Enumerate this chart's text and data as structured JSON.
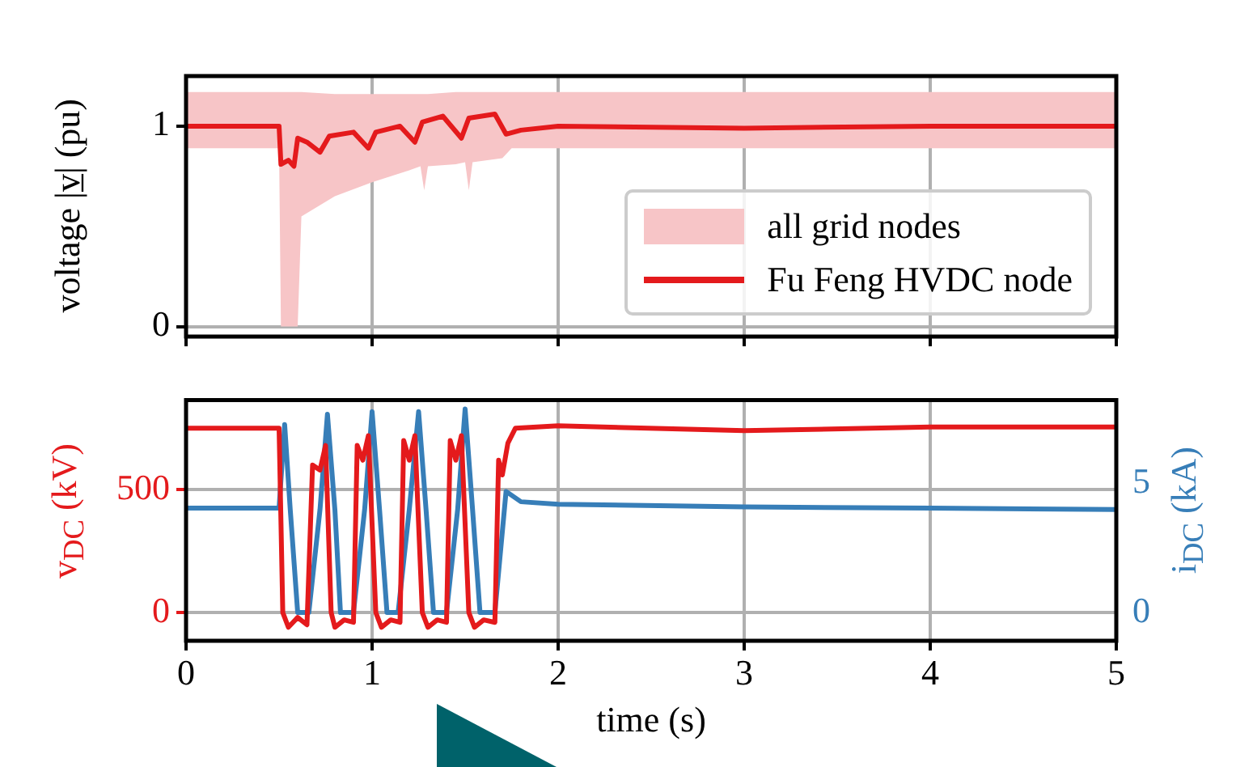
{
  "chart_data": [
    {
      "type": "line",
      "ylabel": "voltage |v̲| (pu)",
      "xlim": [
        0,
        5
      ],
      "xticks": [
        0,
        1,
        2,
        3,
        4,
        5
      ],
      "ylim": [
        -0.05,
        1.25
      ],
      "yticks": [
        0,
        1
      ],
      "grid": true,
      "legend": "bottom right",
      "tick_labels": "y",
      "series": [
        {
          "name": "all grid nodes",
          "type": "area",
          "color": "#f7c5c7",
          "x": [
            0,
            0.5,
            0.51,
            0.6,
            0.62,
            0.8,
            1.0,
            1.2,
            1.26,
            1.28,
            1.3,
            1.45,
            1.5,
            1.52,
            1.54,
            1.7,
            1.75,
            2,
            3,
            4,
            5
          ],
          "values": [
            null,
            null,
            null,
            null,
            null,
            null,
            null,
            null,
            null,
            null,
            null,
            null,
            null,
            null,
            null,
            null,
            null,
            null,
            null,
            null,
            null
          ],
          "lower": [
            0.89,
            0.89,
            0,
            0,
            0.55,
            0.65,
            0.72,
            0.78,
            0.8,
            0.68,
            0.8,
            0.81,
            0.82,
            0.68,
            0.82,
            0.84,
            0.89,
            0.89,
            0.89,
            0.89,
            0.89
          ],
          "upper": [
            1.17,
            1.17,
            1.17,
            1.17,
            1.17,
            1.16,
            1.16,
            1.16,
            1.16,
            1.16,
            1.16,
            1.17,
            1.17,
            1.17,
            1.17,
            1.17,
            1.17,
            1.17,
            1.17,
            1.17,
            1.17
          ]
        },
        {
          "name": "Fu Feng HVDC node",
          "type": "line",
          "color": "#e41a1c",
          "x": [
            0,
            0.5,
            0.51,
            0.55,
            0.58,
            0.6,
            0.65,
            0.72,
            0.77,
            0.9,
            0.98,
            1.02,
            1.15,
            1.23,
            1.27,
            1.38,
            1.48,
            1.52,
            1.66,
            1.72,
            1.8,
            2,
            3,
            4,
            5
          ],
          "values": [
            1.0,
            1.0,
            0.81,
            0.83,
            0.8,
            0.94,
            0.92,
            0.87,
            0.95,
            0.97,
            0.89,
            0.97,
            1.0,
            0.92,
            1.02,
            1.05,
            0.94,
            1.04,
            1.06,
            0.96,
            0.98,
            1.0,
            0.99,
            1.0,
            1.0
          ]
        }
      ]
    },
    {
      "type": "line",
      "xlabel": "time (s)",
      "ylabel": "v$_{DC}$ (kV)",
      "y2label": "i$_{DC}$ (kA)",
      "xlim": [
        0,
        5
      ],
      "xticks": [
        0,
        1,
        2,
        3,
        4,
        5
      ],
      "ylim": [
        -115,
        865
      ],
      "yticks": [
        0,
        500
      ],
      "y2lim": [
        -1.1,
        8.25
      ],
      "y2ticks": [
        0,
        5
      ],
      "grid": true,
      "series": [
        {
          "color": "#e41a1c",
          "x": [
            0,
            0.5,
            0.52,
            0.55,
            0.6,
            0.65,
            0.68,
            0.72,
            0.75,
            0.78,
            0.8,
            0.85,
            0.9,
            0.92,
            0.95,
            0.98,
            1.02,
            1.05,
            1.1,
            1.15,
            1.17,
            1.2,
            1.23,
            1.27,
            1.3,
            1.35,
            1.4,
            1.42,
            1.45,
            1.48,
            1.52,
            1.55,
            1.6,
            1.66,
            1.68,
            1.7,
            1.73,
            1.77,
            2,
            3,
            4,
            5
          ],
          "values": [
            750,
            750,
            0,
            -60,
            -20,
            -50,
            600,
            580,
            680,
            0,
            -60,
            -30,
            -40,
            680,
            620,
            720,
            0,
            -60,
            -30,
            -40,
            700,
            620,
            720,
            0,
            -60,
            -30,
            -40,
            700,
            620,
            720,
            0,
            -60,
            -30,
            -40,
            620,
            560,
            690,
            750,
            760,
            740,
            755,
            755
          ]
        },
        {
          "color": "#377eb8",
          "axis": "y2",
          "x": [
            0,
            0.5,
            0.53,
            0.56,
            0.6,
            0.66,
            0.72,
            0.76,
            0.8,
            0.83,
            0.9,
            0.96,
            1.0,
            1.04,
            1.08,
            1.14,
            1.2,
            1.25,
            1.29,
            1.33,
            1.4,
            1.46,
            1.5,
            1.54,
            1.58,
            1.66,
            1.72,
            1.8,
            2,
            3,
            4,
            5
          ],
          "values": [
            4.05,
            4.05,
            7.3,
            4,
            0,
            0,
            4,
            7.7,
            4,
            0,
            0,
            4,
            7.8,
            4,
            0,
            0,
            4,
            7.8,
            4,
            0,
            0,
            4,
            7.9,
            4,
            0,
            0,
            4.7,
            4.3,
            4.2,
            4.1,
            4.05,
            4.0
          ]
        }
      ]
    }
  ]
}
